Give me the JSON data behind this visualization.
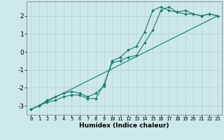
{
  "xlabel": "Humidex (Indice chaleur)",
  "ylabel": "",
  "bg_color": "#cce8e8",
  "line_color": "#1a7a6e",
  "grid_color": "#b8d4d4",
  "xlim": [
    -0.5,
    23.5
  ],
  "ylim": [
    -3.5,
    2.8
  ],
  "xticks": [
    0,
    1,
    2,
    3,
    4,
    5,
    6,
    7,
    8,
    9,
    10,
    11,
    12,
    13,
    14,
    15,
    16,
    17,
    18,
    19,
    20,
    21,
    22,
    23
  ],
  "yticks": [
    -3,
    -2,
    -1,
    0,
    1,
    2
  ],
  "line1_x": [
    0,
    1,
    2,
    3,
    4,
    5,
    6,
    7,
    8,
    9,
    10,
    11,
    12,
    13,
    14,
    15,
    16,
    17,
    18,
    19,
    20,
    21,
    22,
    23
  ],
  "line1_y": [
    -3.2,
    -3.0,
    -2.7,
    -2.5,
    -2.3,
    -2.2,
    -2.3,
    -2.5,
    -2.3,
    -1.9,
    -0.5,
    -0.3,
    0.1,
    0.3,
    1.1,
    2.3,
    2.5,
    2.3,
    2.2,
    2.3,
    2.1,
    2.0,
    2.1,
    2.0
  ],
  "line2_x": [
    0,
    1,
    2,
    3,
    4,
    5,
    6,
    7,
    8,
    9,
    10,
    11,
    12,
    13,
    14,
    15,
    16,
    17,
    18,
    19,
    20,
    21,
    22,
    23
  ],
  "line2_y": [
    -3.2,
    -3.0,
    -2.8,
    -2.7,
    -2.5,
    -2.4,
    -2.4,
    -2.6,
    -2.6,
    -1.8,
    -0.6,
    -0.5,
    -0.3,
    -0.2,
    0.5,
    1.2,
    2.3,
    2.5,
    2.2,
    2.1,
    2.1,
    2.0,
    2.1,
    2.0
  ],
  "line3_x": [
    0,
    23
  ],
  "line3_y": [
    -3.2,
    2.0
  ]
}
